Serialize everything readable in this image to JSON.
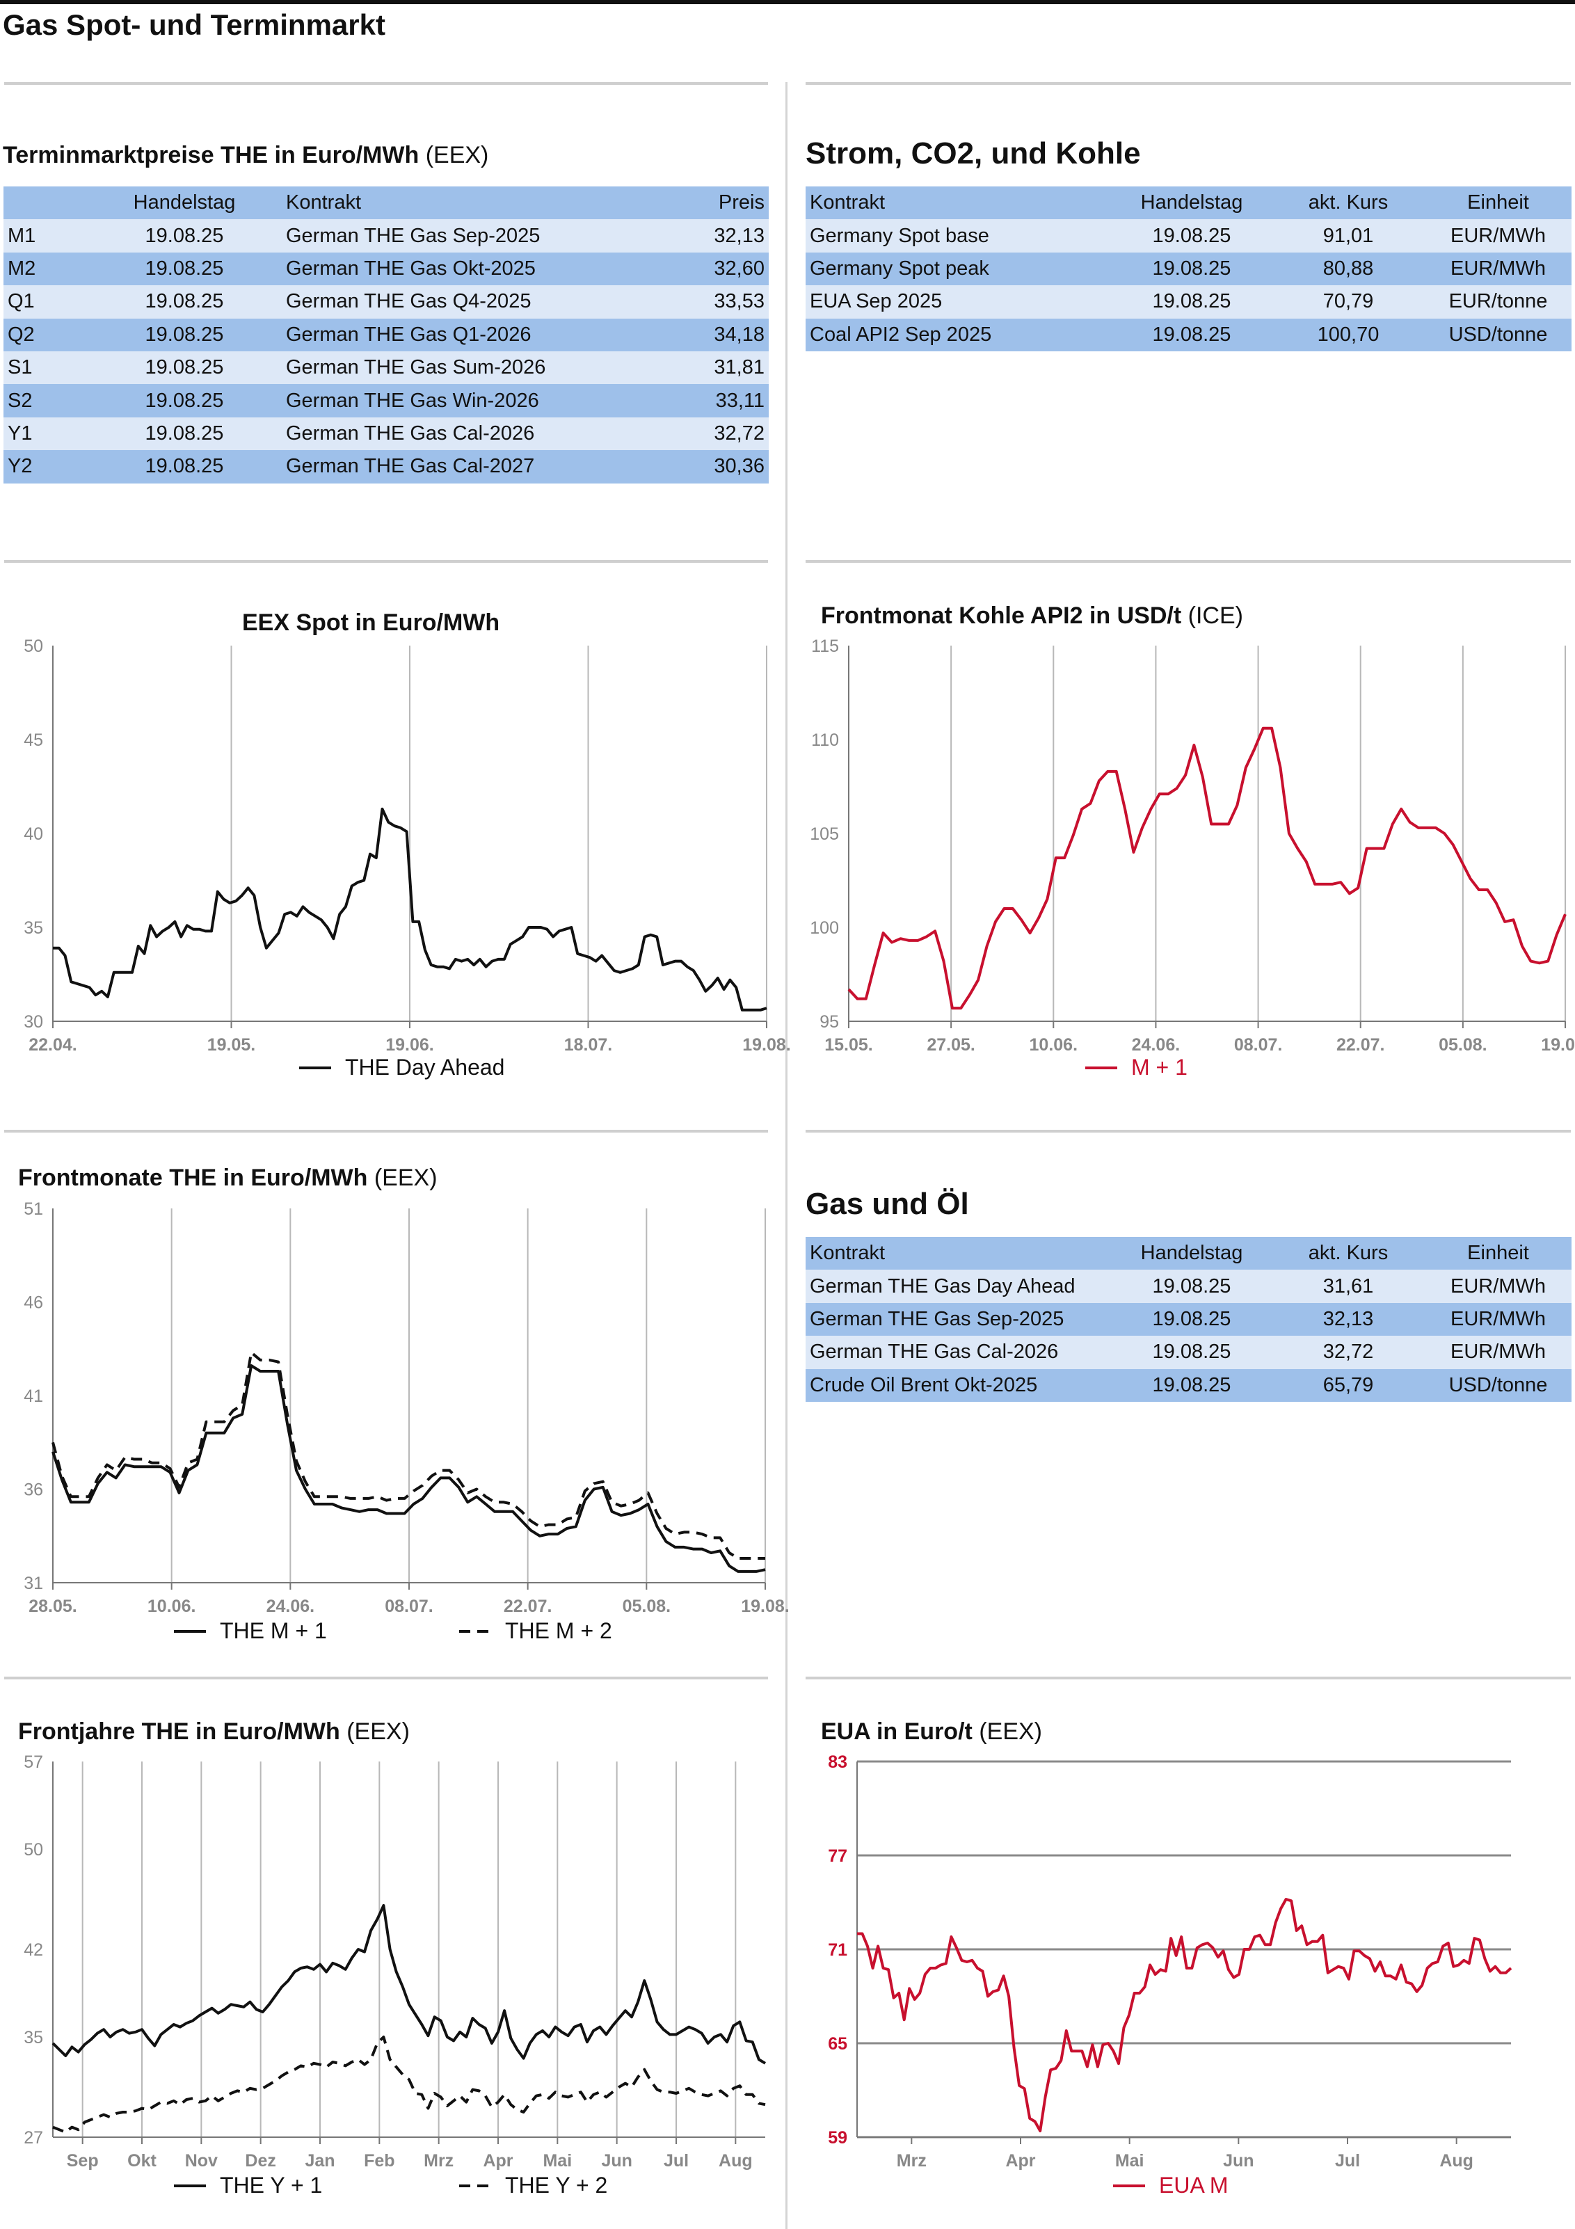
{
  "page_title": "Gas Spot- und Terminmarkt",
  "colors": {
    "header_row": "#9ec0ea",
    "light_row": "#dde8f7",
    "red_series": "#c8102e",
    "black_series": "#111111"
  },
  "table_the": {
    "title": "Terminmarktpreise THE in Euro/MWh",
    "source": "(EEX)",
    "columns": [
      "",
      "Handelstag",
      "Kontrakt",
      "Preis"
    ],
    "rows": [
      [
        "M1",
        "19.08.25",
        "German THE Gas Sep-2025",
        "32,13"
      ],
      [
        "M2",
        "19.08.25",
        "German THE Gas Okt-2025",
        "32,60"
      ],
      [
        "Q1",
        "19.08.25",
        "German THE Gas Q4-2025",
        "33,53"
      ],
      [
        "Q2",
        "19.08.25",
        "German THE Gas Q1-2026",
        "34,18"
      ],
      [
        "S1",
        "19.08.25",
        "German THE Gas Sum-2026",
        "31,81"
      ],
      [
        "S2",
        "19.08.25",
        "German THE Gas Win-2026",
        "33,11"
      ],
      [
        "Y1",
        "19.08.25",
        "German THE Gas Cal-2026",
        "32,72"
      ],
      [
        "Y2",
        "19.08.25",
        "German THE Gas Cal-2027",
        "30,36"
      ]
    ]
  },
  "table_strom": {
    "title": "Strom, CO2, und Kohle",
    "columns": [
      "Kontrakt",
      "Handelstag",
      "akt. Kurs",
      "Einheit"
    ],
    "rows": [
      [
        "Germany Spot base",
        "19.08.25",
        "91,01",
        "EUR/MWh"
      ],
      [
        "Germany Spot peak",
        "19.08.25",
        "80,88",
        "EUR/MWh"
      ],
      [
        "EUA Sep 2025",
        "19.08.25",
        "70,79",
        "EUR/tonne"
      ],
      [
        "Coal API2 Sep 2025",
        "19.08.25",
        "100,70",
        "USD/tonne"
      ]
    ]
  },
  "table_gas_oel": {
    "title": "Gas und Öl",
    "columns": [
      "Kontrakt",
      "Handelstag",
      "akt. Kurs",
      "Einheit"
    ],
    "rows": [
      [
        "German THE Gas Day Ahead",
        "19.08.25",
        "31,61",
        "EUR/MWh"
      ],
      [
        "German THE Gas Sep-2025",
        "19.08.25",
        "32,13",
        "EUR/MWh"
      ],
      [
        "German THE Gas Cal-2026",
        "19.08.25",
        "32,72",
        "EUR/MWh"
      ],
      [
        "Crude Oil Brent Okt-2025",
        "19.08.25",
        "65,79",
        "USD/tonne"
      ]
    ]
  },
  "chart_titles": {
    "spot": {
      "title": "EEX Spot in Euro/MWh",
      "source": ""
    },
    "coal": {
      "title": "Frontmonat Kohle API2 in USD/t",
      "source": "(ICE)"
    },
    "front": {
      "title": "Frontmonate THE in Euro/MWh",
      "source": "(EEX)"
    },
    "years": {
      "title": "Frontjahre THE in Euro/MWh",
      "source": "(EEX)"
    },
    "eua": {
      "title": "EUA in Euro/t",
      "source": "(EEX)"
    }
  },
  "chart_data": [
    {
      "id": "spot",
      "type": "line",
      "title": "EEX Spot in Euro/MWh",
      "x_ticks": [
        "22.04.",
        "19.05.",
        "19.06.",
        "18.07.",
        "19.08."
      ],
      "y_ticks": [
        30,
        35,
        40,
        45,
        50
      ],
      "ylim": [
        30,
        50
      ],
      "grid": "vertical",
      "legend": "bottom",
      "series": [
        {
          "name": "THE Day Ahead",
          "color": "#111111",
          "dash": false,
          "values": [
            33.9,
            33.9,
            33.5,
            32.1,
            32.0,
            31.9,
            31.8,
            31.4,
            31.6,
            31.3,
            32.6,
            32.6,
            32.6,
            32.6,
            34.0,
            33.6,
            35.1,
            34.5,
            34.8,
            35.0,
            35.3,
            34.5,
            35.1,
            34.9,
            34.9,
            34.8,
            34.8,
            36.9,
            36.5,
            36.3,
            36.4,
            36.7,
            37.1,
            36.7,
            35.0,
            33.9,
            34.3,
            34.7,
            35.7,
            35.8,
            35.6,
            36.1,
            35.8,
            35.6,
            35.4,
            35.0,
            34.4,
            35.7,
            36.1,
            37.2,
            37.4,
            37.5,
            38.9,
            38.7,
            41.3,
            40.6,
            40.4,
            40.3,
            40.1,
            35.3,
            35.3,
            33.8,
            33.0,
            32.9,
            32.9,
            32.8,
            33.3,
            33.2,
            33.3,
            33.0,
            33.3,
            32.9,
            33.2,
            33.3,
            33.3,
            34.1,
            34.3,
            34.5,
            35.0,
            35.0,
            35.0,
            34.9,
            34.5,
            34.8,
            34.9,
            35.0,
            33.6,
            33.5,
            33.4,
            33.2,
            33.5,
            33.1,
            32.7,
            32.6,
            32.7,
            32.8,
            33.0,
            34.5,
            34.6,
            34.5,
            33.0,
            33.1,
            33.2,
            33.2,
            32.9,
            32.7,
            32.2,
            31.6,
            31.9,
            32.3,
            31.7,
            32.2,
            31.8,
            30.6,
            30.6,
            30.6,
            30.6,
            30.7
          ]
        }
      ]
    },
    {
      "id": "coal",
      "type": "line",
      "title": "Frontmonat Kohle API2 in USD/t",
      "x_ticks": [
        "15.05.",
        "27.05.",
        "10.06.",
        "24.06.",
        "08.07.",
        "22.07.",
        "05.08.",
        "19.08."
      ],
      "y_ticks": [
        95,
        100,
        105,
        110,
        115
      ],
      "ylim": [
        95,
        115
      ],
      "grid": "vertical",
      "legend": "bottom",
      "series": [
        {
          "name": "M + 1",
          "color": "#c8102e",
          "dash": false,
          "values": [
            96.7,
            96.2,
            96.2,
            98.0,
            99.7,
            99.2,
            99.4,
            99.3,
            99.3,
            99.5,
            99.8,
            98.2,
            95.7,
            95.7,
            96.4,
            97.2,
            99.0,
            100.3,
            101.0,
            101.0,
            100.4,
            99.7,
            100.5,
            101.5,
            103.7,
            103.7,
            104.9,
            106.3,
            106.6,
            107.8,
            108.3,
            108.3,
            106.3,
            104.0,
            105.3,
            106.3,
            107.1,
            107.1,
            107.4,
            108.1,
            109.7,
            108.0,
            105.5,
            105.5,
            105.5,
            106.5,
            108.5,
            109.5,
            110.6,
            110.6,
            108.5,
            105.0,
            104.2,
            103.5,
            102.3,
            102.3,
            102.3,
            102.4,
            101.8,
            102.1,
            104.2,
            104.2,
            104.2,
            105.5,
            106.3,
            105.6,
            105.3,
            105.3,
            105.3,
            105.0,
            104.4,
            103.5,
            102.6,
            102.0,
            102.0,
            101.3,
            100.3,
            100.4,
            99.0,
            98.2,
            98.1,
            98.2,
            99.6,
            100.7
          ]
        }
      ]
    },
    {
      "id": "front",
      "type": "line",
      "title": "Frontmonate THE in Euro/MWh",
      "x_ticks": [
        "28.05.",
        "10.06.",
        "24.06.",
        "08.07.",
        "22.07.",
        "05.08.",
        "19.08."
      ],
      "y_ticks": [
        31,
        36,
        41,
        46,
        51
      ],
      "ylim": [
        31,
        51
      ],
      "grid": "vertical",
      "legend": "bottom",
      "series": [
        {
          "name": "THE M + 1",
          "color": "#111111",
          "dash": false,
          "values": [
            38.0,
            36.5,
            35.3,
            35.3,
            35.3,
            36.3,
            36.9,
            36.6,
            37.3,
            37.2,
            37.2,
            37.2,
            37.2,
            36.9,
            35.8,
            37.0,
            37.3,
            39.0,
            39.0,
            39.0,
            39.8,
            40.0,
            42.6,
            42.3,
            42.3,
            42.3,
            39.5,
            37.0,
            36.0,
            35.2,
            35.2,
            35.2,
            35.0,
            34.9,
            34.8,
            34.9,
            34.9,
            34.7,
            34.7,
            34.7,
            35.2,
            35.5,
            36.1,
            36.6,
            36.6,
            36.1,
            35.3,
            35.6,
            35.2,
            34.8,
            34.8,
            34.8,
            34.3,
            33.8,
            33.5,
            33.6,
            33.6,
            33.9,
            34.0,
            35.4,
            36.0,
            36.1,
            34.8,
            34.6,
            34.7,
            34.9,
            35.2,
            34.0,
            33.2,
            32.9,
            32.9,
            32.8,
            32.8,
            32.6,
            32.7,
            31.9,
            31.6,
            31.6,
            31.6,
            31.7
          ]
        },
        {
          "name": "THE M + 2",
          "color": "#111111",
          "dash": true,
          "values": [
            38.5,
            36.7,
            35.6,
            35.6,
            35.6,
            36.6,
            37.3,
            37.0,
            37.7,
            37.6,
            37.6,
            37.4,
            37.4,
            37.1,
            36.1,
            37.4,
            37.6,
            39.6,
            39.6,
            39.6,
            40.2,
            40.5,
            43.3,
            42.9,
            42.9,
            42.8,
            40.0,
            37.5,
            36.4,
            35.6,
            35.6,
            35.6,
            35.6,
            35.5,
            35.5,
            35.5,
            35.6,
            35.4,
            35.5,
            35.5,
            35.9,
            36.2,
            36.7,
            37.0,
            37.0,
            36.5,
            35.8,
            36.0,
            35.6,
            35.3,
            35.3,
            35.2,
            34.8,
            34.3,
            34.0,
            34.1,
            34.1,
            34.4,
            34.5,
            35.9,
            36.3,
            36.4,
            35.3,
            35.1,
            35.2,
            35.4,
            35.8,
            34.7,
            33.9,
            33.6,
            33.7,
            33.7,
            33.6,
            33.4,
            33.4,
            32.6,
            32.3,
            32.3,
            32.3,
            32.3
          ]
        }
      ]
    },
    {
      "id": "years",
      "type": "line",
      "title": "Frontjahre THE in Euro/MWh",
      "x_ticks": [
        "Sep",
        "Okt",
        "Nov",
        "Dez",
        "Jan",
        "Feb",
        "Mrz",
        "Apr",
        "Mai",
        "Jun",
        "Jul",
        "Aug"
      ],
      "y_ticks": [
        27,
        35,
        42,
        50,
        57
      ],
      "ylim": [
        27,
        57
      ],
      "grid": "vertical",
      "legend": "bottom",
      "series": [
        {
          "name": "THE Y + 1",
          "color": "#111111",
          "dash": false,
          "values": [
            34.5,
            34.0,
            33.5,
            34.2,
            33.8,
            34.4,
            34.8,
            35.3,
            35.6,
            35.0,
            35.4,
            35.6,
            35.3,
            35.4,
            35.6,
            34.9,
            34.3,
            35.2,
            35.6,
            36.0,
            35.8,
            36.1,
            36.3,
            36.7,
            37.0,
            37.3,
            36.9,
            37.2,
            37.6,
            37.5,
            37.4,
            37.8,
            37.2,
            37.0,
            37.6,
            38.3,
            39.0,
            39.5,
            40.2,
            40.5,
            40.6,
            40.4,
            40.8,
            40.2,
            40.9,
            40.7,
            40.4,
            41.3,
            42.0,
            41.8,
            43.5,
            44.4,
            45.5,
            42.0,
            40.2,
            39.0,
            37.6,
            36.8,
            36.0,
            35.1,
            36.6,
            36.3,
            35.0,
            34.7,
            35.4,
            35.0,
            36.5,
            36.0,
            35.7,
            34.5,
            35.4,
            37.1,
            34.9,
            34.0,
            33.3,
            34.5,
            35.2,
            35.5,
            35.0,
            35.8,
            35.4,
            35.1,
            35.8,
            36.0,
            34.6,
            35.5,
            35.8,
            35.2,
            35.9,
            36.5,
            37.1,
            36.6,
            37.8,
            39.5,
            38.0,
            36.2,
            35.6,
            35.2,
            35.2,
            35.5,
            35.8,
            35.6,
            35.3,
            34.5,
            35.0,
            35.2,
            34.6,
            35.9,
            36.2,
            34.7,
            34.6,
            33.2,
            32.9
          ]
        },
        {
          "name": "THE Y + 2",
          "color": "#111111",
          "dash": true,
          "values": [
            27.8,
            27.6,
            27.4,
            27.8,
            27.6,
            28.2,
            28.4,
            28.6,
            28.8,
            28.6,
            28.9,
            29.0,
            29.0,
            29.1,
            29.3,
            29.2,
            29.5,
            29.8,
            29.7,
            29.9,
            29.6,
            30.0,
            30.1,
            29.8,
            29.9,
            30.3,
            29.9,
            30.2,
            30.5,
            30.7,
            30.6,
            30.9,
            30.8,
            30.9,
            31.2,
            31.5,
            31.9,
            32.2,
            32.4,
            32.7,
            32.6,
            32.9,
            32.8,
            32.6,
            33.0,
            32.9,
            32.7,
            33.0,
            33.2,
            32.8,
            33.2,
            34.5,
            35.0,
            33.2,
            32.6,
            32.0,
            31.6,
            30.5,
            30.4,
            29.3,
            30.5,
            30.2,
            29.5,
            29.9,
            30.3,
            29.8,
            30.8,
            30.7,
            30.3,
            29.4,
            29.8,
            30.4,
            29.6,
            29.2,
            29.0,
            29.7,
            30.3,
            30.4,
            30.1,
            30.6,
            30.3,
            30.2,
            30.4,
            30.6,
            29.8,
            30.4,
            30.6,
            30.2,
            30.6,
            31.0,
            31.3,
            31.0,
            31.8,
            32.4,
            31.5,
            30.8,
            30.6,
            30.6,
            30.5,
            30.7,
            30.9,
            30.6,
            30.4,
            30.3,
            30.5,
            30.7,
            30.3,
            30.9,
            31.1,
            30.4,
            30.4,
            29.7,
            29.6
          ]
        }
      ]
    },
    {
      "id": "eua",
      "type": "line",
      "title": "EUA in Euro/t",
      "x_ticks": [
        "Mrz",
        "Apr",
        "Mai",
        "Jun",
        "Jul",
        "Aug"
      ],
      "y_ticks": [
        59,
        65,
        71,
        77,
        83
      ],
      "ylim": [
        59,
        83
      ],
      "grid": "horizontal",
      "legend": "bottom",
      "series": [
        {
          "name": "EUA M",
          "color": "#c8102e",
          "dash": false,
          "values": [
            72.0,
            72.0,
            71.2,
            69.8,
            71.2,
            69.8,
            69.7,
            67.9,
            68.2,
            66.5,
            68.5,
            67.8,
            68.2,
            69.4,
            69.8,
            69.8,
            70.0,
            70.1,
            71.8,
            71.1,
            70.3,
            70.2,
            70.3,
            69.8,
            69.6,
            68.0,
            68.3,
            68.4,
            69.3,
            68.0,
            64.7,
            62.3,
            62.1,
            60.2,
            60.0,
            59.4,
            61.6,
            63.3,
            63.4,
            63.9,
            65.8,
            64.5,
            64.5,
            64.5,
            63.5,
            64.9,
            63.5,
            64.9,
            65.0,
            64.5,
            63.7,
            66.0,
            66.8,
            68.2,
            68.2,
            68.6,
            70.0,
            69.4,
            69.7,
            69.6,
            71.7,
            70.6,
            71.8,
            69.8,
            69.8,
            71.1,
            71.3,
            71.4,
            71.1,
            70.5,
            70.9,
            69.7,
            69.2,
            69.4,
            71.0,
            71.0,
            71.8,
            71.9,
            71.3,
            71.3,
            72.7,
            73.6,
            74.2,
            74.1,
            72.2,
            72.5,
            71.3,
            71.5,
            71.5,
            71.9,
            69.5,
            69.7,
            69.9,
            69.8,
            69.1,
            70.9,
            70.9,
            70.6,
            70.4,
            69.6,
            70.2,
            69.3,
            69.3,
            69.1,
            70.0,
            68.9,
            68.8,
            68.3,
            68.7,
            69.8,
            70.1,
            70.2,
            71.2,
            71.4,
            69.9,
            70.0,
            70.3,
            70.1,
            71.7,
            71.6,
            70.4,
            69.6,
            69.9,
            69.5,
            69.5,
            69.8
          ]
        }
      ]
    }
  ]
}
